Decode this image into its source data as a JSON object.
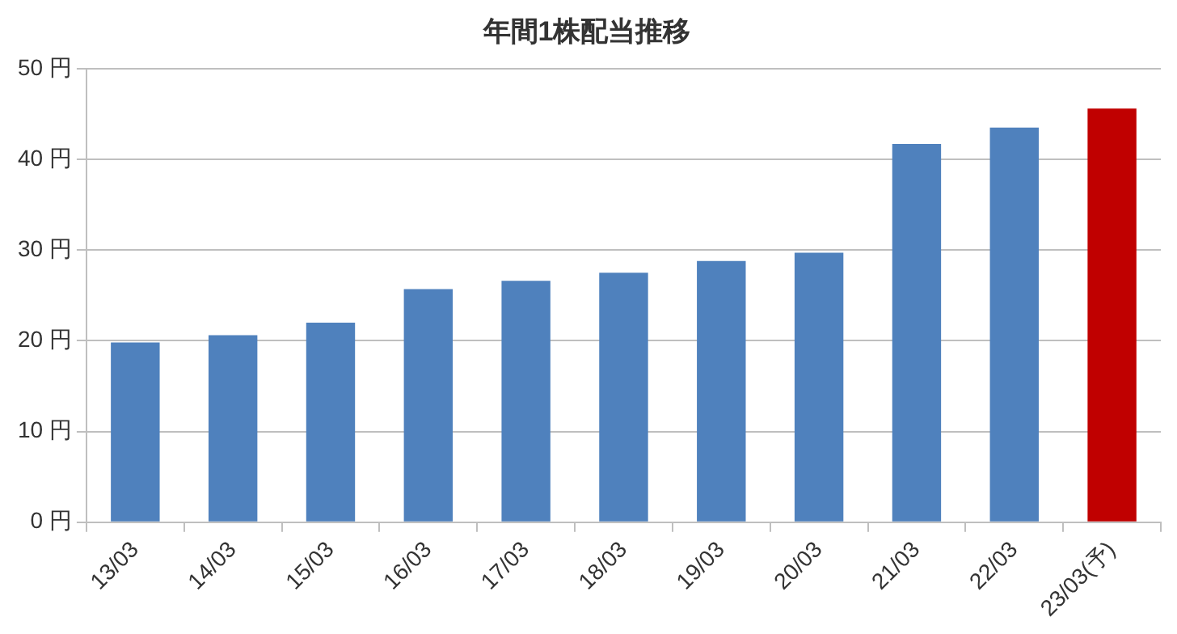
{
  "chart_data": {
    "type": "bar",
    "title": "年間1株配当推移",
    "categories": [
      "13/03",
      "14/03",
      "15/03",
      "16/03",
      "17/03",
      "18/03",
      "19/03",
      "20/03",
      "21/03",
      "22/03",
      "23/03(予)"
    ],
    "values": [
      19.8,
      20.6,
      22,
      25.7,
      26.6,
      27.5,
      28.8,
      29.7,
      41.7,
      43.5,
      45.6
    ],
    "colors": [
      "#4f81bd",
      "#4f81bd",
      "#4f81bd",
      "#4f81bd",
      "#4f81bd",
      "#4f81bd",
      "#4f81bd",
      "#4f81bd",
      "#4f81bd",
      "#4f81bd",
      "#c00000"
    ],
    "ylim": [
      0,
      50
    ],
    "yticks": [
      {
        "value": 0,
        "label": "0 円"
      },
      {
        "value": 10,
        "label": "10 円"
      },
      {
        "value": 20,
        "label": "20 円"
      },
      {
        "value": 30,
        "label": "30 円"
      },
      {
        "value": 40,
        "label": "40 円"
      },
      {
        "value": 50,
        "label": "50 円"
      }
    ],
    "grid": "y",
    "legend": false
  }
}
